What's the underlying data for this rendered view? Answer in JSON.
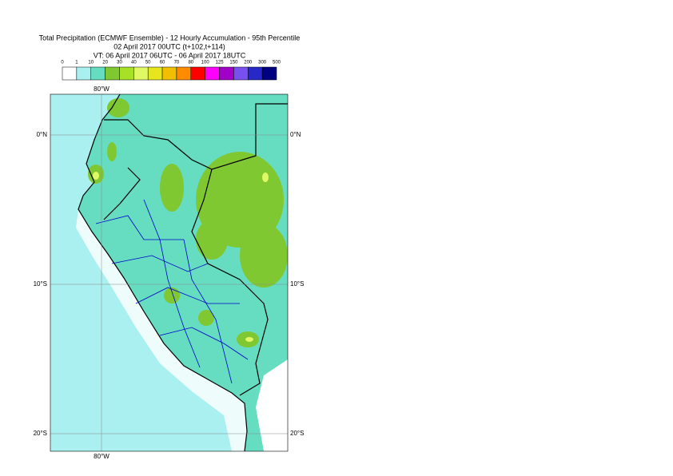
{
  "header": {
    "title": "Total Precipitation (ECMWF Ensemble) - 12 Hourly Accumulation - 95th Percentile",
    "subtitle": "02 April 2017 00UTC (t+102,t+114)",
    "valid_time": "VT: 06 April 2017 06UTC - 06 April 2017 18UTC"
  },
  "legend": {
    "labels": [
      "0",
      "1",
      "10",
      "20",
      "30",
      "40",
      "50",
      "60",
      "70",
      "80",
      "100",
      "125",
      "150",
      "200",
      "300",
      "500"
    ],
    "colors": [
      "#ffffff",
      "#aaf0f0",
      "#66dcc0",
      "#80c832",
      "#a8e028",
      "#e0f864",
      "#e6e61e",
      "#f0c000",
      "#ff8c00",
      "#ff0000",
      "#ff00ff",
      "#a000c8",
      "#7850f0",
      "#2828c8",
      "#000080"
    ]
  },
  "map": {
    "lon_labels": [
      "80°W"
    ],
    "lat_labels": [
      "0°N",
      "10°S",
      "20°S"
    ]
  }
}
